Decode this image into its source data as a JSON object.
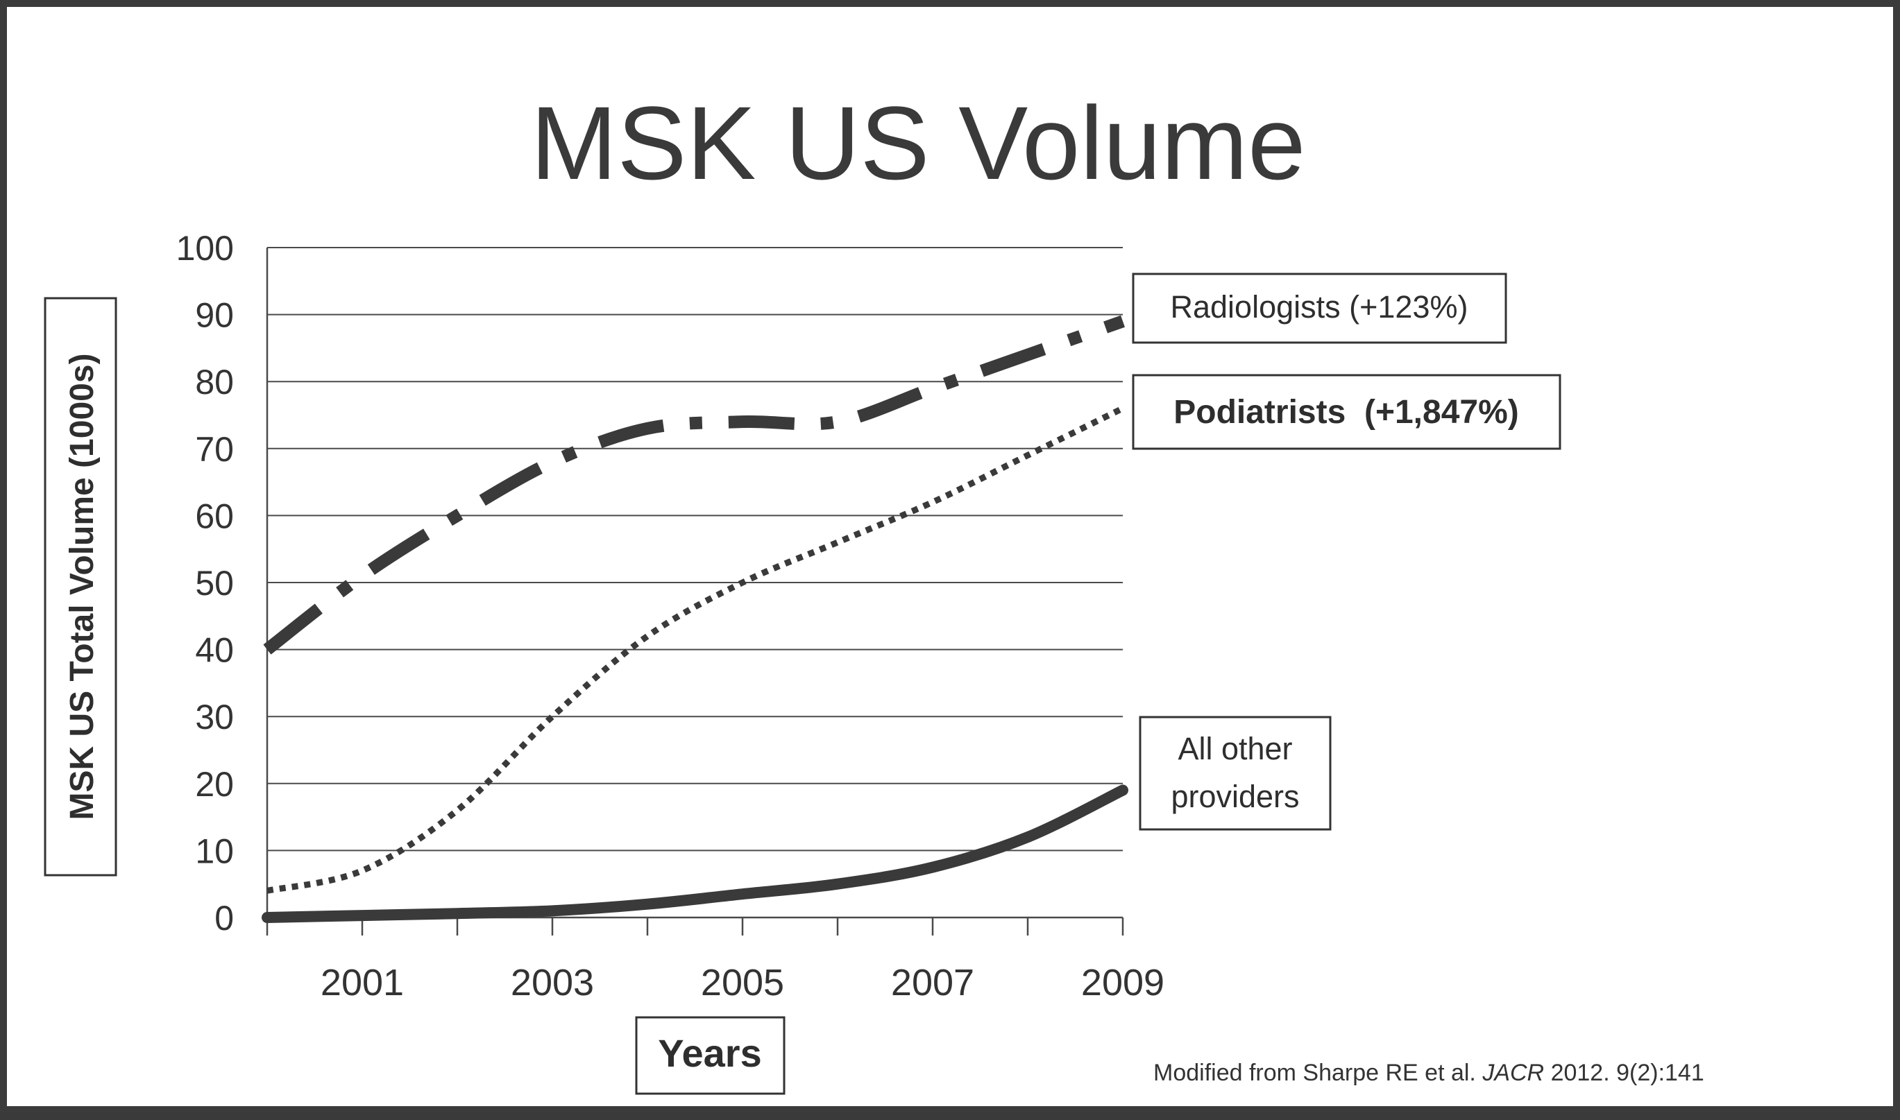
{
  "chart_data": {
    "type": "line",
    "title": "MSK US Volume",
    "xlabel": "Years",
    "ylabel": "MSK US Total Volume (1000s)",
    "x": [
      2000,
      2001,
      2002,
      2003,
      2004,
      2005,
      2006,
      2007,
      2008,
      2009
    ],
    "x_tick_labels": [
      "2001",
      "2003",
      "2005",
      "2007",
      "2009"
    ],
    "y_tick_labels": [
      "0",
      "10",
      "20",
      "30",
      "40",
      "50",
      "60",
      "70",
      "80",
      "90",
      "100"
    ],
    "ylim": [
      0,
      100
    ],
    "grid": true,
    "series": [
      {
        "name": "Radiologists (+123%)",
        "style": "dash-dot",
        "values": [
          40,
          51,
          60,
          68,
          73,
          74,
          74,
          79,
          84,
          89
        ]
      },
      {
        "name": "Podiatrists  (+1,847%)",
        "style": "dotted",
        "values": [
          4,
          7,
          16,
          30,
          42,
          50,
          56,
          62,
          69,
          76
        ]
      },
      {
        "name": "All other providers",
        "name_lines": [
          "All other",
          "providers"
        ],
        "style": "solid",
        "values": [
          0,
          0.3,
          0.6,
          1,
          2,
          3.5,
          5,
          7.5,
          12,
          19
        ]
      }
    ]
  },
  "source_note": {
    "prefix": "Modified from Sharpe RE et al. ",
    "journal": "JACR",
    "suffix": " 2012.  9(2):141"
  }
}
